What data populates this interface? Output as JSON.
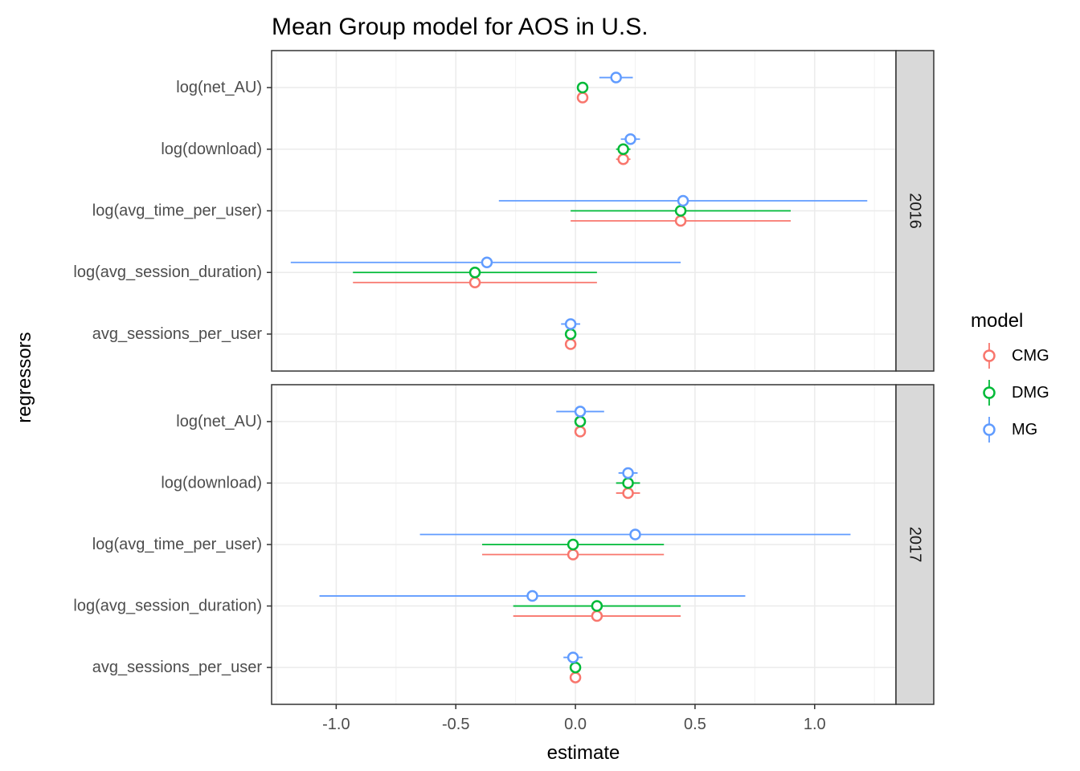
{
  "chart_data": {
    "type": "scatter",
    "title": "Mean Group model for AOS in U.S.",
    "xlabel": "estimate",
    "ylabel": "regressors",
    "xlim": [
      -1.27,
      1.34
    ],
    "xticks": [
      -1.0,
      -0.5,
      0.0,
      0.5,
      1.0
    ],
    "xtick_labels": [
      "-1.0",
      "-0.5",
      "0.0",
      "0.5",
      "1.0"
    ],
    "grid": true,
    "categories": [
      "log(net_AU)",
      "log(download)",
      "log(avg_time_per_user)",
      "log(avg_session_duration)",
      "avg_sessions_per_user"
    ],
    "legend": {
      "title": "model",
      "placement": "right",
      "entries": [
        {
          "name": "CMG",
          "color": "#F8766D"
        },
        {
          "name": "DMG",
          "color": "#00BA38"
        },
        {
          "name": "MG",
          "color": "#619CFF"
        }
      ]
    },
    "facets": [
      {
        "label": "2016",
        "series": [
          {
            "name": "CMG",
            "color": "#F8766D",
            "points": [
              {
                "y": "log(net_AU)",
                "x": 0.03,
                "lo": 0.03,
                "hi": 0.03
              },
              {
                "y": "log(download)",
                "x": 0.2,
                "lo": 0.17,
                "hi": 0.23
              },
              {
                "y": "log(avg_time_per_user)",
                "x": 0.44,
                "lo": -0.02,
                "hi": 0.9
              },
              {
                "y": "log(avg_session_duration)",
                "x": -0.42,
                "lo": -0.93,
                "hi": 0.09
              },
              {
                "y": "avg_sessions_per_user",
                "x": -0.02,
                "lo": -0.02,
                "hi": -0.02
              }
            ]
          },
          {
            "name": "DMG",
            "color": "#00BA38",
            "points": [
              {
                "y": "log(net_AU)",
                "x": 0.03,
                "lo": 0.03,
                "hi": 0.03
              },
              {
                "y": "log(download)",
                "x": 0.2,
                "lo": 0.17,
                "hi": 0.23
              },
              {
                "y": "log(avg_time_per_user)",
                "x": 0.44,
                "lo": -0.02,
                "hi": 0.9
              },
              {
                "y": "log(avg_session_duration)",
                "x": -0.42,
                "lo": -0.93,
                "hi": 0.09
              },
              {
                "y": "avg_sessions_per_user",
                "x": -0.02,
                "lo": -0.02,
                "hi": -0.02
              }
            ]
          },
          {
            "name": "MG",
            "color": "#619CFF",
            "points": [
              {
                "y": "log(net_AU)",
                "x": 0.17,
                "lo": 0.1,
                "hi": 0.24
              },
              {
                "y": "log(download)",
                "x": 0.23,
                "lo": 0.19,
                "hi": 0.27
              },
              {
                "y": "log(avg_time_per_user)",
                "x": 0.45,
                "lo": -0.32,
                "hi": 1.22
              },
              {
                "y": "log(avg_session_duration)",
                "x": -0.37,
                "lo": -1.19,
                "hi": 0.44
              },
              {
                "y": "avg_sessions_per_user",
                "x": -0.02,
                "lo": -0.06,
                "hi": 0.02
              }
            ]
          }
        ]
      },
      {
        "label": "2017",
        "series": [
          {
            "name": "CMG",
            "color": "#F8766D",
            "points": [
              {
                "y": "log(net_AU)",
                "x": 0.02,
                "lo": 0.0,
                "hi": 0.04
              },
              {
                "y": "log(download)",
                "x": 0.22,
                "lo": 0.17,
                "hi": 0.27
              },
              {
                "y": "log(avg_time_per_user)",
                "x": -0.01,
                "lo": -0.39,
                "hi": 0.37
              },
              {
                "y": "log(avg_session_duration)",
                "x": 0.09,
                "lo": -0.26,
                "hi": 0.44
              },
              {
                "y": "avg_sessions_per_user",
                "x": 0.0,
                "lo": 0.0,
                "hi": 0.0
              }
            ]
          },
          {
            "name": "DMG",
            "color": "#00BA38",
            "points": [
              {
                "y": "log(net_AU)",
                "x": 0.02,
                "lo": 0.0,
                "hi": 0.04
              },
              {
                "y": "log(download)",
                "x": 0.22,
                "lo": 0.17,
                "hi": 0.27
              },
              {
                "y": "log(avg_time_per_user)",
                "x": -0.01,
                "lo": -0.39,
                "hi": 0.37
              },
              {
                "y": "log(avg_session_duration)",
                "x": 0.09,
                "lo": -0.26,
                "hi": 0.44
              },
              {
                "y": "avg_sessions_per_user",
                "x": 0.0,
                "lo": -0.01,
                "hi": 0.01
              }
            ]
          },
          {
            "name": "MG",
            "color": "#619CFF",
            "points": [
              {
                "y": "log(net_AU)",
                "x": 0.02,
                "lo": -0.08,
                "hi": 0.12
              },
              {
                "y": "log(download)",
                "x": 0.22,
                "lo": 0.18,
                "hi": 0.26
              },
              {
                "y": "log(avg_time_per_user)",
                "x": 0.25,
                "lo": -0.65,
                "hi": 1.15
              },
              {
                "y": "log(avg_session_duration)",
                "x": -0.18,
                "lo": -1.07,
                "hi": 0.71
              },
              {
                "y": "avg_sessions_per_user",
                "x": -0.01,
                "lo": -0.05,
                "hi": 0.03
              }
            ]
          }
        ]
      }
    ]
  }
}
